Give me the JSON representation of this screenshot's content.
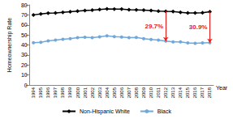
{
  "chart_data": {
    "type": "line",
    "x_label": "Year",
    "y_label": "Homeownership Rate",
    "categories": [
      "1994",
      "1995",
      "1996",
      "1997",
      "1998",
      "1999",
      "2000",
      "2001",
      "2002",
      "2003",
      "2004",
      "2005",
      "2006",
      "2007",
      "2008",
      "2009",
      "2010",
      "2011",
      "2012",
      "2013",
      "2014",
      "2015",
      "2016",
      "2017",
      "2018"
    ],
    "series": [
      {
        "name": "Non-Hispanic White",
        "color": "#000000",
        "marker": "diamond",
        "values": [
          70.0,
          70.9,
          71.7,
          72.0,
          72.6,
          73.2,
          73.8,
          74.3,
          74.7,
          75.4,
          76.0,
          75.8,
          75.8,
          75.2,
          75.0,
          74.8,
          74.4,
          73.8,
          73.5,
          73.3,
          72.6,
          71.9,
          71.9,
          72.2,
          73.1
        ]
      },
      {
        "name": "Black",
        "color": "#6fa8dc",
        "marker": "circle",
        "values": [
          42.3,
          42.7,
          44.1,
          44.8,
          45.6,
          46.3,
          47.2,
          47.7,
          47.3,
          48.1,
          49.1,
          48.2,
          47.9,
          47.2,
          47.4,
          46.2,
          45.4,
          44.9,
          43.8,
          43.1,
          43.0,
          42.1,
          41.7,
          42.1,
          42.2
        ]
      }
    ],
    "annotations": [
      {
        "text": "29.7%",
        "x": "2012"
      },
      {
        "text": "30.9%",
        "x": "2018"
      }
    ],
    "ylim": [
      0,
      80
    ],
    "yticks": [
      0,
      10,
      20,
      30,
      40,
      50,
      60,
      70,
      80
    ],
    "grid": false,
    "legend": "bottom"
  }
}
